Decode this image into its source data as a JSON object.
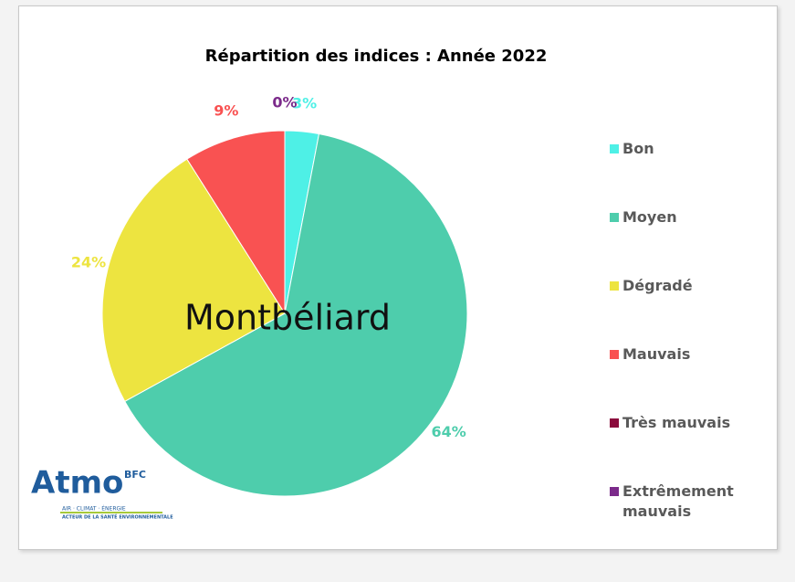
{
  "chart_data": {
    "type": "pie",
    "title": "Répartition des indices : Année 2022",
    "annotation": "Montbéliard",
    "categories": [
      "Bon",
      "Moyen",
      "Dégradé",
      "Mauvais",
      "Très mauvais",
      "Extrêmement mauvais"
    ],
    "values": [
      3,
      64,
      24,
      9,
      0,
      0
    ],
    "value_labels": [
      "3%",
      "64%",
      "24%",
      "9%",
      null,
      "0%"
    ],
    "colors": [
      "#4ef0e6",
      "#4ecdac",
      "#ede440",
      "#f95252",
      "#8b0a3c",
      "#7b2a8a"
    ],
    "legend": "right",
    "logo": {
      "name": "Atmo",
      "region": "BFC",
      "tagline": "AIR · CLIMAT · ÉNERGIE",
      "motto": "ACTEUR DE LA SANTÉ ENVIRONNEMENTALE"
    }
  }
}
